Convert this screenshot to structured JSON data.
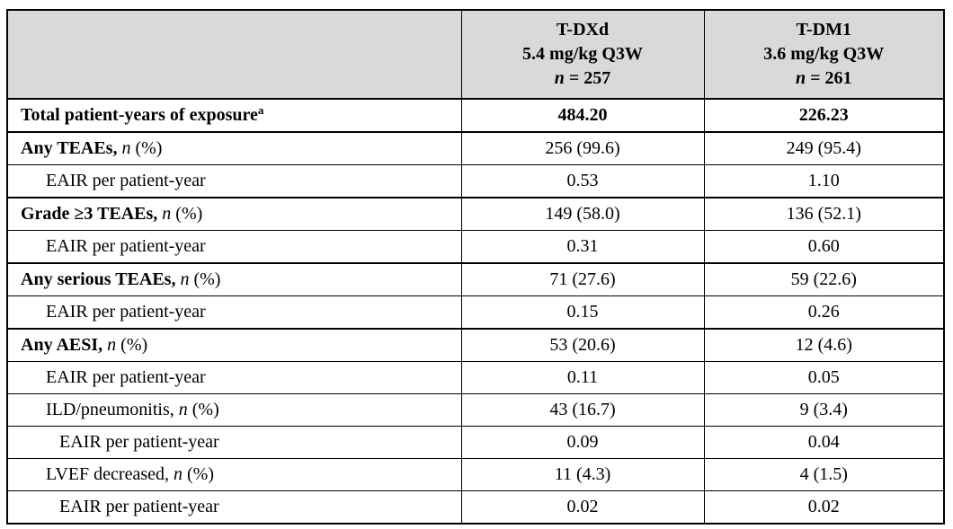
{
  "colors": {
    "header_bg": "#d9d9d9",
    "border": "#000000",
    "text": "#000000",
    "page_bg": "#ffffff"
  },
  "table": {
    "columns": [
      {
        "id": "label",
        "header_lines": []
      },
      {
        "id": "tdxd",
        "header_lines": [
          [
            {
              "t": "T-DXd",
              "s": "b"
            }
          ],
          [
            {
              "t": "5.4 mg/kg Q3W",
              "s": "b"
            }
          ],
          [
            {
              "t": "n",
              "s": "bi"
            },
            {
              "t": " = 257",
              "s": "b"
            }
          ]
        ]
      },
      {
        "id": "tdm1",
        "header_lines": [
          [
            {
              "t": "T-DM1",
              "s": "b"
            }
          ],
          [
            {
              "t": "3.6 mg/kg Q3W",
              "s": "b"
            }
          ],
          [
            {
              "t": "n",
              "s": "bi"
            },
            {
              "t": " = 261",
              "s": "b"
            }
          ]
        ]
      }
    ],
    "rows": [
      {
        "name": "total-patient-years",
        "group": true,
        "indent": 0,
        "label": [
          {
            "t": "Total patient-years of exposure",
            "s": "b"
          },
          {
            "t": "a",
            "s": "b-sup"
          }
        ],
        "values": [
          "484.20",
          "226.23"
        ],
        "values_bold": true
      },
      {
        "name": "any-teaes",
        "group": true,
        "indent": 0,
        "label": [
          {
            "t": "Any TEAEs, ",
            "s": "b"
          },
          {
            "t": "n",
            "s": "i"
          },
          {
            "t": " (%)",
            "s": "r"
          }
        ],
        "values": [
          "256 (99.6)",
          "249 (95.4)"
        ],
        "values_bold": false
      },
      {
        "name": "any-teaes-eair",
        "group": false,
        "indent": 1,
        "label": [
          {
            "t": "EAIR per patient-year",
            "s": "r"
          }
        ],
        "values": [
          "0.53",
          "1.10"
        ],
        "values_bold": false
      },
      {
        "name": "grade3-teaes",
        "group": true,
        "indent": 0,
        "label": [
          {
            "t": "Grade ≥3 TEAEs, ",
            "s": "b"
          },
          {
            "t": "n",
            "s": "i"
          },
          {
            "t": " (%)",
            "s": "r"
          }
        ],
        "values": [
          "149 (58.0)",
          "136 (52.1)"
        ],
        "values_bold": false
      },
      {
        "name": "grade3-teaes-eair",
        "group": false,
        "indent": 1,
        "label": [
          {
            "t": "EAIR per patient-year",
            "s": "r"
          }
        ],
        "values": [
          "0.31",
          "0.60"
        ],
        "values_bold": false
      },
      {
        "name": "serious-teaes",
        "group": true,
        "indent": 0,
        "label": [
          {
            "t": "Any serious TEAEs, ",
            "s": "b"
          },
          {
            "t": "n",
            "s": "i"
          },
          {
            "t": " (%)",
            "s": "r"
          }
        ],
        "values": [
          "71 (27.6)",
          "59 (22.6)"
        ],
        "values_bold": false
      },
      {
        "name": "serious-teaes-eair",
        "group": false,
        "indent": 1,
        "label": [
          {
            "t": "EAIR per patient-year",
            "s": "r"
          }
        ],
        "values": [
          "0.15",
          "0.26"
        ],
        "values_bold": false
      },
      {
        "name": "any-aesi",
        "group": true,
        "indent": 0,
        "label": [
          {
            "t": "Any AESI, ",
            "s": "b"
          },
          {
            "t": "n",
            "s": "i"
          },
          {
            "t": " (%)",
            "s": "r"
          }
        ],
        "values": [
          "53 (20.6)",
          "12 (4.6)"
        ],
        "values_bold": false
      },
      {
        "name": "any-aesi-eair",
        "group": false,
        "indent": 1,
        "label": [
          {
            "t": "EAIR per patient-year",
            "s": "r"
          }
        ],
        "values": [
          "0.11",
          "0.05"
        ],
        "values_bold": false
      },
      {
        "name": "ild-pneumonitis",
        "group": false,
        "indent": 1,
        "label": [
          {
            "t": "ILD/pneumonitis, ",
            "s": "r"
          },
          {
            "t": "n",
            "s": "i"
          },
          {
            "t": " (%)",
            "s": "r"
          }
        ],
        "values": [
          "43 (16.7)",
          "9 (3.4)"
        ],
        "values_bold": false
      },
      {
        "name": "ild-pneumonitis-eair",
        "group": false,
        "indent": 2,
        "label": [
          {
            "t": "EAIR per patient-year",
            "s": "r"
          }
        ],
        "values": [
          "0.09",
          "0.04"
        ],
        "values_bold": false
      },
      {
        "name": "lvef-decreased",
        "group": false,
        "indent": 1,
        "label": [
          {
            "t": "LVEF decreased, ",
            "s": "r"
          },
          {
            "t": "n",
            "s": "i"
          },
          {
            "t": " (%)",
            "s": "r"
          }
        ],
        "values": [
          "11 (4.3)",
          "4 (1.5)"
        ],
        "values_bold": false
      },
      {
        "name": "lvef-decreased-eair",
        "group": false,
        "indent": 2,
        "label": [
          {
            "t": "EAIR per patient-year",
            "s": "r"
          }
        ],
        "values": [
          "0.02",
          "0.02"
        ],
        "values_bold": false
      }
    ]
  }
}
